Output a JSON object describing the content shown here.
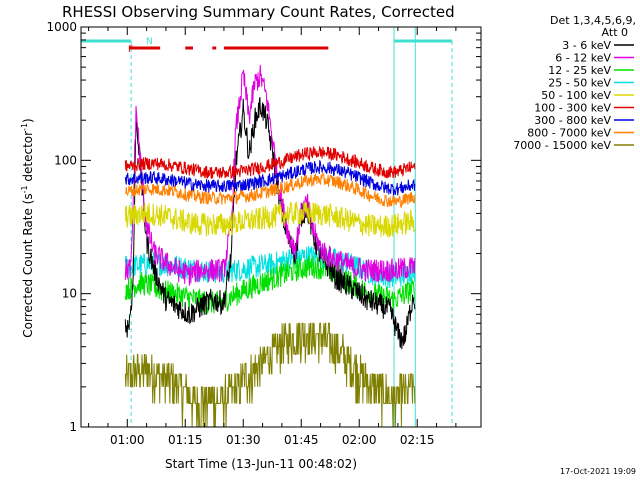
{
  "chart_data": {
    "type": "line",
    "title": "RHESSI Observing Summary Count Rates, Corrected",
    "xlabel": "Start Time (13-Jun-11 00:48:02)",
    "ylabel_main": "Corrected Count Rate (s",
    "ylabel_sup1": "-1",
    "ylabel_mid": " detector",
    "ylabel_sup2": "-1",
    "ylabel_end": ")",
    "y_scale": "log",
    "ylim": [
      1,
      1000
    ],
    "xlim_minutes": [
      48.03,
      151.5
    ],
    "x_ticks": [
      {
        "label": "01:00",
        "minutes": 60
      },
      {
        "label": "01:15",
        "minutes": 75
      },
      {
        "label": "01:30",
        "minutes": 90
      },
      {
        "label": "01:45",
        "minutes": 105
      },
      {
        "label": "02:00",
        "minutes": 120
      },
      {
        "label": "02:15",
        "minutes": 135
      }
    ],
    "y_ticks": [
      {
        "label": "1",
        "value": 1
      },
      {
        "label": "10",
        "value": 10
      },
      {
        "label": "100",
        "value": 100
      },
      {
        "label": "1000",
        "value": 1000
      }
    ],
    "legend_header": [
      "Det 1,3,4,5,6,9,",
      "Att 0"
    ],
    "legend_position": "right",
    "footer": "17-Oct-2021 19:09",
    "flags": {
      "F": {
        "label": "F",
        "color": "#dd0000"
      },
      "N": {
        "label": "N",
        "color": "#40e0d0"
      }
    },
    "flag_segments": [
      [
        60.5,
        68.5
      ],
      [
        75.0,
        77.0
      ],
      [
        82.0,
        83.0
      ],
      [
        85.0,
        112.0
      ]
    ],
    "night_periods": [
      [
        48.03,
        61.0
      ],
      [
        129.0,
        144.0
      ]
    ],
    "data_interval": [
      59.5,
      134.5
    ],
    "series": [
      {
        "name": "3 - 6 keV",
        "color": "#000000",
        "points": [
          [
            59.5,
            5.5
          ],
          [
            60.5,
            6
          ],
          [
            61.5,
            12
          ],
          [
            62.3,
            230
          ],
          [
            63.5,
            80
          ],
          [
            65,
            25
          ],
          [
            67,
            15
          ],
          [
            70,
            9
          ],
          [
            73,
            8
          ],
          [
            76,
            7
          ],
          [
            79,
            8
          ],
          [
            82,
            9
          ],
          [
            85,
            8.5
          ],
          [
            87,
            20
          ],
          [
            88,
            90
          ],
          [
            90,
            240
          ],
          [
            91.5,
            110
          ],
          [
            93,
            200
          ],
          [
            94.5,
            260
          ],
          [
            96,
            200
          ],
          [
            97.5,
            120
          ],
          [
            99,
            60
          ],
          [
            100.5,
            35
          ],
          [
            102,
            24
          ],
          [
            103.5,
            20
          ],
          [
            105,
            38
          ],
          [
            106.5,
            45
          ],
          [
            108,
            28
          ],
          [
            110,
            19
          ],
          [
            112,
            16
          ],
          [
            114,
            13
          ],
          [
            116,
            12
          ],
          [
            118,
            11
          ],
          [
            120,
            10
          ],
          [
            122,
            9
          ],
          [
            124,
            8.5
          ],
          [
            126,
            8
          ],
          [
            128,
            7.5
          ],
          [
            130,
            5
          ],
          [
            131,
            4.5
          ],
          [
            132,
            5
          ],
          [
            133,
            7
          ],
          [
            134,
            10
          ],
          [
            134.5,
            8
          ]
        ]
      },
      {
        "name": "6 - 12 keV",
        "color": "#e000e0",
        "points": [
          [
            59.5,
            15
          ],
          [
            61,
            15.5
          ],
          [
            62.3,
            245
          ],
          [
            63.5,
            90
          ],
          [
            65,
            32
          ],
          [
            67,
            20
          ],
          [
            70,
            17
          ],
          [
            73,
            15
          ],
          [
            76,
            14
          ],
          [
            79,
            15
          ],
          [
            82,
            15
          ],
          [
            85,
            15
          ],
          [
            87,
            35
          ],
          [
            88,
            160
          ],
          [
            90,
            440
          ],
          [
            91.5,
            210
          ],
          [
            93,
            380
          ],
          [
            94.5,
            430
          ],
          [
            96,
            300
          ],
          [
            97.5,
            150
          ],
          [
            99,
            70
          ],
          [
            100.5,
            40
          ],
          [
            102,
            26
          ],
          [
            103.5,
            22
          ],
          [
            105,
            40
          ],
          [
            106.5,
            48
          ],
          [
            108,
            30
          ],
          [
            110,
            22
          ],
          [
            112,
            19
          ],
          [
            114,
            18
          ],
          [
            116,
            17
          ],
          [
            118,
            16
          ],
          [
            120,
            15.5
          ],
          [
            122,
            15
          ],
          [
            124,
            15
          ],
          [
            126,
            15
          ],
          [
            128,
            15
          ],
          [
            130,
            15
          ],
          [
            132,
            15.5
          ],
          [
            134.5,
            16
          ]
        ]
      },
      {
        "name": "12 - 25 keV",
        "color": "#00e000",
        "points": [
          [
            59.5,
            11
          ],
          [
            61,
            11
          ],
          [
            63,
            12
          ],
          [
            66,
            11.5
          ],
          [
            69,
            10.5
          ],
          [
            72,
            10
          ],
          [
            75,
            9.5
          ],
          [
            78,
            9
          ],
          [
            81,
            8.5
          ],
          [
            84,
            8.5
          ],
          [
            87,
            9.5
          ],
          [
            90,
            10.5
          ],
          [
            93,
            11.5
          ],
          [
            96,
            12.5
          ],
          [
            99,
            13.5
          ],
          [
            102,
            14.5
          ],
          [
            105,
            15.5
          ],
          [
            108,
            16
          ],
          [
            111,
            15.5
          ],
          [
            114,
            14
          ],
          [
            117,
            12.5
          ],
          [
            120,
            11
          ],
          [
            123,
            10
          ],
          [
            126,
            9.5
          ],
          [
            129,
            9
          ],
          [
            132,
            10
          ],
          [
            134.5,
            11
          ]
        ]
      },
      {
        "name": "25 - 50 keV",
        "color": "#00e0e0",
        "points": [
          [
            59.5,
            16
          ],
          [
            61,
            16
          ],
          [
            64,
            16.5
          ],
          [
            67,
            17
          ],
          [
            70,
            16.5
          ],
          [
            73,
            16
          ],
          [
            76,
            15.5
          ],
          [
            79,
            15
          ],
          [
            82,
            14.5
          ],
          [
            85,
            14.5
          ],
          [
            88,
            15
          ],
          [
            91,
            15.5
          ],
          [
            94,
            16
          ],
          [
            97,
            16.5
          ],
          [
            100,
            17.5
          ],
          [
            103,
            18.5
          ],
          [
            106,
            19
          ],
          [
            109,
            19
          ],
          [
            112,
            18.5
          ],
          [
            115,
            17.5
          ],
          [
            118,
            16.5
          ],
          [
            121,
            15
          ],
          [
            124,
            14
          ],
          [
            127,
            13.5
          ],
          [
            130,
            13.5
          ],
          [
            132,
            14
          ],
          [
            134.5,
            15
          ]
        ]
      },
      {
        "name": "50 - 100 keV",
        "color": "#d8d800",
        "points": [
          [
            59.5,
            38
          ],
          [
            61,
            38
          ],
          [
            64,
            40
          ],
          [
            67,
            39.5
          ],
          [
            70,
            38
          ],
          [
            73,
            36
          ],
          [
            76,
            34
          ],
          [
            79,
            33
          ],
          [
            82,
            33
          ],
          [
            85,
            33
          ],
          [
            88,
            34
          ],
          [
            91,
            35
          ],
          [
            94,
            36
          ],
          [
            97,
            37.5
          ],
          [
            100,
            39
          ],
          [
            103,
            40
          ],
          [
            106,
            40
          ],
          [
            109,
            40
          ],
          [
            112,
            39
          ],
          [
            115,
            37
          ],
          [
            118,
            35
          ],
          [
            121,
            33
          ],
          [
            124,
            32
          ],
          [
            127,
            32
          ],
          [
            130,
            33
          ],
          [
            132,
            34
          ],
          [
            134.5,
            35
          ]
        ]
      },
      {
        "name": "100 - 300 keV",
        "color": "#e00000",
        "points": [
          [
            59.5,
            90
          ],
          [
            61,
            91
          ],
          [
            64,
            94
          ],
          [
            67,
            95
          ],
          [
            70,
            93
          ],
          [
            73,
            90
          ],
          [
            76,
            86
          ],
          [
            79,
            83
          ],
          [
            82,
            81
          ],
          [
            85,
            81
          ],
          [
            88,
            82
          ],
          [
            91,
            84
          ],
          [
            94,
            88
          ],
          [
            97,
            92
          ],
          [
            100,
            98
          ],
          [
            103,
            105
          ],
          [
            106,
            112
          ],
          [
            109,
            115
          ],
          [
            112,
            113
          ],
          [
            115,
            108
          ],
          [
            118,
            100
          ],
          [
            121,
            93
          ],
          [
            124,
            86
          ],
          [
            127,
            82
          ],
          [
            130,
            82
          ],
          [
            132,
            86
          ],
          [
            134.5,
            90
          ]
        ]
      },
      {
        "name": "300 - 800 keV",
        "color": "#0000e0",
        "points": [
          [
            59.5,
            72
          ],
          [
            61,
            73
          ],
          [
            64,
            74
          ],
          [
            67,
            74
          ],
          [
            70,
            72
          ],
          [
            73,
            70
          ],
          [
            76,
            67
          ],
          [
            79,
            65
          ],
          [
            82,
            64
          ],
          [
            85,
            64
          ],
          [
            88,
            65
          ],
          [
            91,
            66
          ],
          [
            94,
            69
          ],
          [
            97,
            72
          ],
          [
            100,
            76
          ],
          [
            103,
            81
          ],
          [
            106,
            86
          ],
          [
            109,
            89
          ],
          [
            112,
            88
          ],
          [
            115,
            84
          ],
          [
            118,
            78
          ],
          [
            121,
            72
          ],
          [
            124,
            66
          ],
          [
            127,
            62
          ],
          [
            130,
            61
          ],
          [
            132,
            63
          ],
          [
            134.5,
            66
          ]
        ]
      },
      {
        "name": "800 - 7000 keV",
        "color": "#ff8000",
        "points": [
          [
            59.5,
            58
          ],
          [
            61,
            59
          ],
          [
            64,
            61
          ],
          [
            67,
            61
          ],
          [
            70,
            60
          ],
          [
            73,
            58
          ],
          [
            76,
            55
          ],
          [
            79,
            53
          ],
          [
            82,
            52
          ],
          [
            85,
            52
          ],
          [
            88,
            53
          ],
          [
            91,
            54
          ],
          [
            94,
            56
          ],
          [
            97,
            59
          ],
          [
            100,
            62
          ],
          [
            103,
            66
          ],
          [
            106,
            70
          ],
          [
            109,
            72
          ],
          [
            112,
            71
          ],
          [
            115,
            68
          ],
          [
            118,
            63
          ],
          [
            121,
            58
          ],
          [
            124,
            53
          ],
          [
            127,
            50
          ],
          [
            130,
            49
          ],
          [
            132,
            51
          ],
          [
            134.5,
            54
          ]
        ]
      },
      {
        "name": "7000 - 15000 keV",
        "color": "#808000",
        "points": [
          [
            59.5,
            2.3
          ],
          [
            61,
            2.5
          ],
          [
            64,
            2.6
          ],
          [
            67,
            2.5
          ],
          [
            70,
            2.3
          ],
          [
            73,
            2.0
          ],
          [
            76,
            1.7
          ],
          [
            79,
            1.5
          ],
          [
            82,
            1.5
          ],
          [
            85,
            1.6
          ],
          [
            88,
            1.9
          ],
          [
            91,
            2.3
          ],
          [
            94,
            2.8
          ],
          [
            97,
            3.4
          ],
          [
            100,
            4.0
          ],
          [
            103,
            4.6
          ],
          [
            106,
            4.9
          ],
          [
            109,
            4.8
          ],
          [
            112,
            4.3
          ],
          [
            115,
            3.6
          ],
          [
            118,
            2.9
          ],
          [
            121,
            2.3
          ],
          [
            124,
            1.9
          ],
          [
            127,
            1.7
          ],
          [
            130,
            1.6
          ],
          [
            132,
            1.8
          ],
          [
            134.5,
            2.0
          ]
        ]
      }
    ]
  }
}
